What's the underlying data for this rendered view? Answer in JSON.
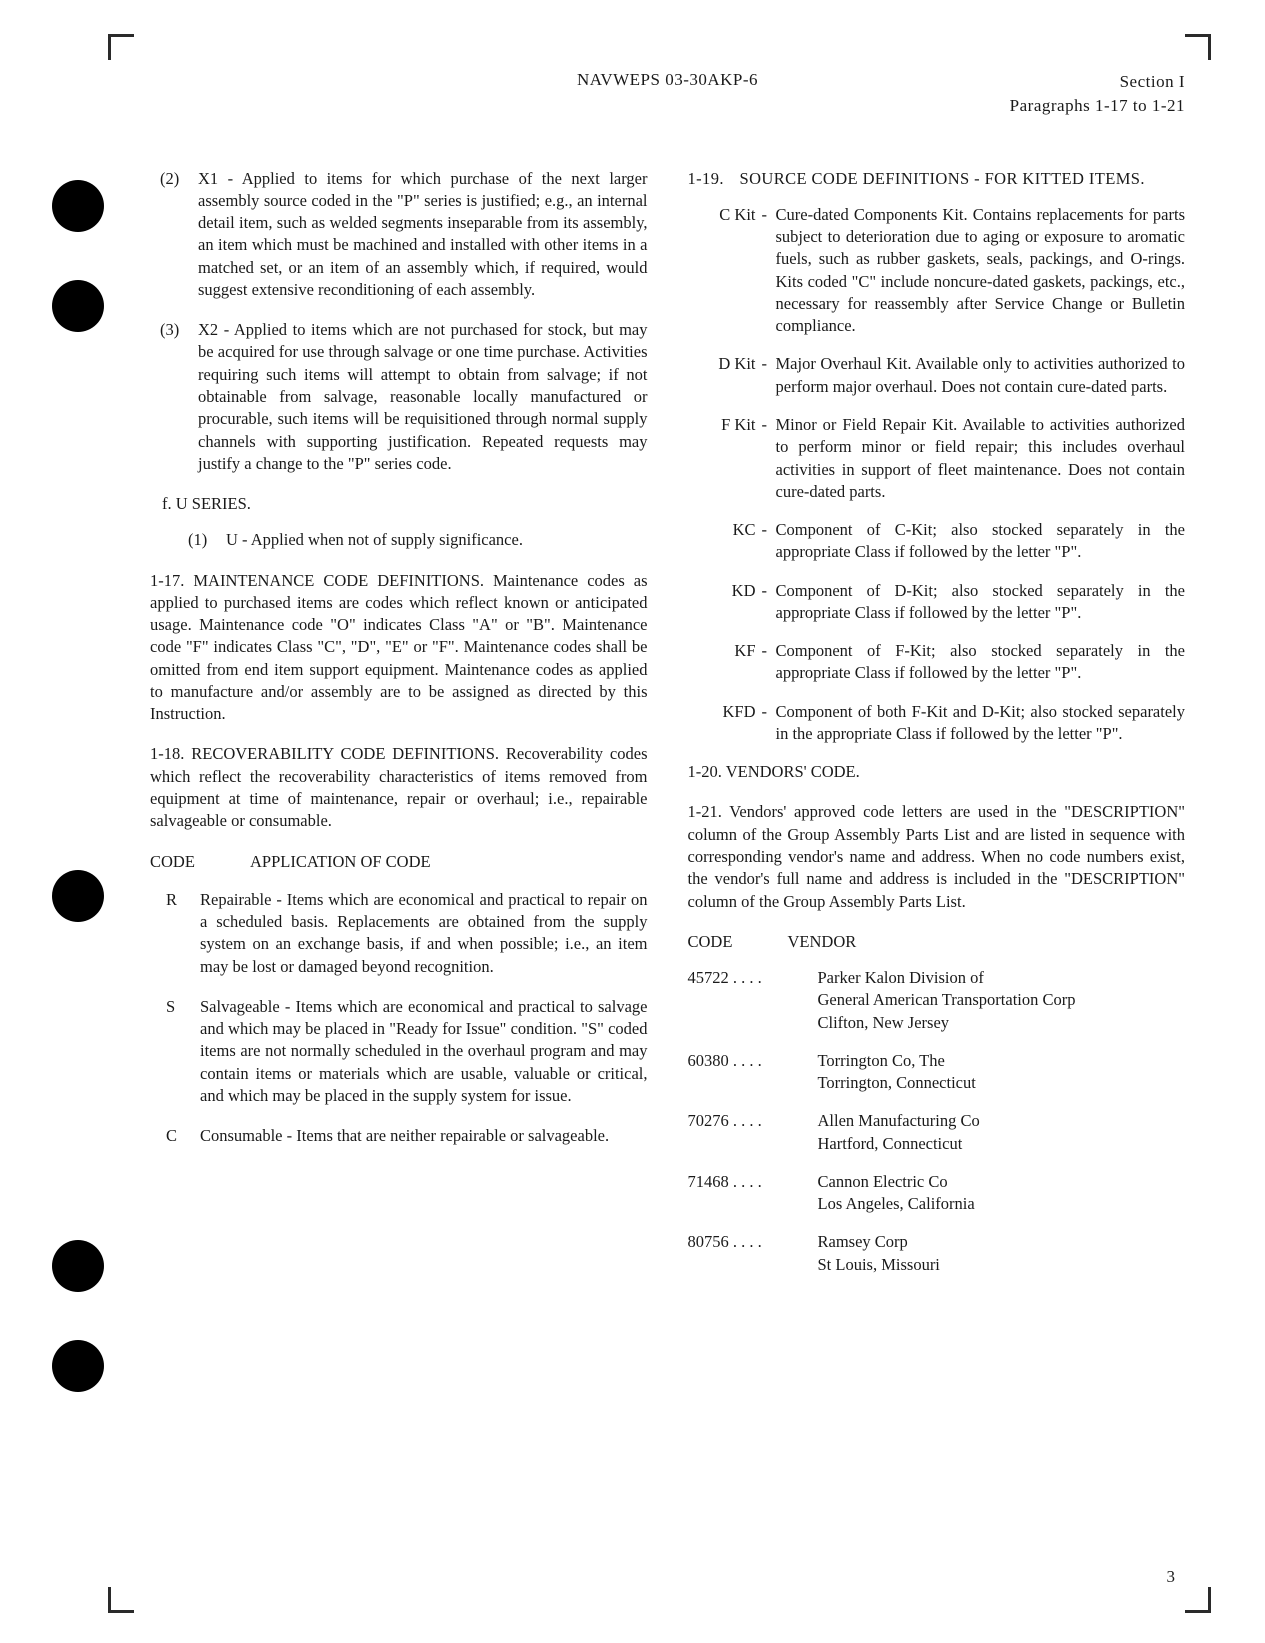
{
  "header": {
    "center": "NAVWEPS 03-30AKP-6",
    "right_line1": "Section I",
    "right_line2": "Paragraphs 1-17 to 1-21"
  },
  "left": {
    "x1_num": "(2)",
    "x1": "X1 - Applied to items for which purchase of the next larger assembly source coded in the \"P\" series is justified; e.g., an internal detail item, such as welded segments inseparable from its assembly, an item which must be machined and installed with other items in a matched set, or an item of an assembly which, if required, would suggest extensive reconditioning of each assembly.",
    "x2_num": "(3)",
    "x2": "X2 - Applied to items which are not purchased for stock, but may be acquired for use through salvage or one time purchase. Activities requiring such items will attempt to obtain from salvage; if not obtainable from salvage, reasonable locally manufactured or procurable, such items will be requisitioned through normal supply channels with supporting justification. Repeated requests may justify a change to the \"P\" series code.",
    "u_series_head": "f. U SERIES.",
    "u_num": "(1)",
    "u": "U - Applied when not of supply significance.",
    "p117": "1-17. MAINTENANCE CODE DEFINITIONS. Maintenance codes as applied to purchased items are codes which reflect known or anticipated usage. Maintenance code \"O\" indicates Class \"A\" or \"B\". Maintenance code \"F\" indicates Class \"C\", \"D\", \"E\" or \"F\". Maintenance codes shall be omitted from end item support equipment. Maintenance codes as applied to manufacture and/or assembly are to be assigned as directed by this Instruction.",
    "p118": "1-18. RECOVERABILITY CODE DEFINITIONS. Recoverability codes which reflect the recoverability characteristics of items removed from equipment at time of maintenance, repair or overhaul; i.e., repairable salvageable or consumable.",
    "codeapp_c1": "CODE",
    "codeapp_c2": "APPLICATION OF CODE",
    "r_code": "R",
    "r_text": "Repairable - Items which are economical and practical to repair on a scheduled basis. Replacements are obtained from the supply system on an exchange basis, if and when possible; i.e., an item may be lost or damaged beyond recognition.",
    "s_code": "S",
    "s_text": "Salvageable - Items which are economical and practical to salvage and which may be placed in \"Ready for Issue\" condition. \"S\" coded items are not normally scheduled in the overhaul program and may contain items or materials which are usable, valuable or critical, and which may be placed in the supply system for issue.",
    "c_code": "C",
    "c_text": "Consumable - Items that are neither repairable or salvageable."
  },
  "right": {
    "p119_num": "1-19.",
    "p119_txt": "SOURCE CODE DEFINITIONS - FOR KITTED ITEMS.",
    "kits": [
      {
        "k": "C Kit",
        "t": "Cure-dated Components Kit. Contains replacements for parts subject to deterioration due to aging or exposure to aromatic fuels, such as rubber gaskets, seals, packings, and O-rings. Kits coded \"C\" include noncure-dated gaskets, packings, etc., necessary for reassembly after Service Change or Bulletin compliance."
      },
      {
        "k": "D Kit",
        "t": "Major Overhaul Kit. Available only to activities authorized to perform major overhaul. Does not contain cure-dated parts."
      },
      {
        "k": "F Kit",
        "t": "Minor or Field Repair Kit. Available to activities authorized to perform minor or field repair; this includes overhaul activities in support of fleet maintenance. Does not contain cure-dated parts."
      },
      {
        "k": "KC",
        "t": "Component of C-Kit; also stocked separately in the appropriate Class if followed by the letter \"P\"."
      },
      {
        "k": "KD",
        "t": "Component of D-Kit; also stocked separately in the appropriate Class if followed by the letter \"P\"."
      },
      {
        "k": "KF",
        "t": "Component of F-Kit; also stocked separately in the appropriate Class if followed by the letter \"P\"."
      },
      {
        "k": "KFD",
        "t": "Component of both F-Kit and D-Kit; also stocked separately in the appropriate Class if followed by the letter \"P\"."
      }
    ],
    "p120": "1-20. VENDORS' CODE.",
    "p121": "1-21. Vendors' approved code letters are used in the \"DESCRIPTION\" column of the Group Assembly Parts List and are listed in sequence with corresponding vendor's name and address. When no code numbers exist, the vendor's full name and address is included in the \"DESCRIPTION\" column of the Group Assembly Parts List.",
    "vhead_c": "CODE",
    "vhead_v": "VENDOR",
    "vendors": [
      {
        "c": "45722 . . . .",
        "n": "Parker Kalon Division of\nGeneral American Transportation Corp\nClifton, New Jersey"
      },
      {
        "c": "60380 . . . .",
        "n": "Torrington Co, The\nTorrington, Connecticut"
      },
      {
        "c": "70276 . . . .",
        "n": "Allen Manufacturing Co\nHartford, Connecticut"
      },
      {
        "c": "71468 . . . .",
        "n": "Cannon Electric Co\nLos Angeles, California"
      },
      {
        "c": "80756 . . . .",
        "n": "Ramsey Corp\nSt Louis, Missouri"
      }
    ]
  },
  "page_number": "3"
}
